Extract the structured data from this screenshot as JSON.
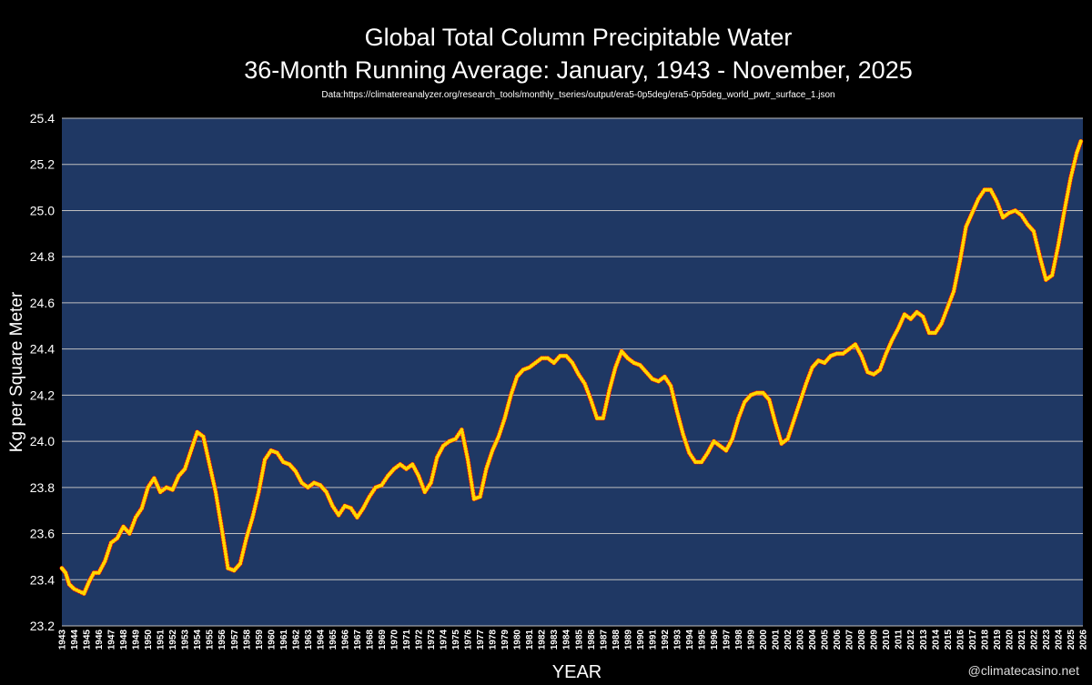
{
  "title": "Global Total Column Precipitable Water",
  "subtitle": "36-Month Running Average: January, 1943 - November, 2025",
  "source": "Data:https://climatereanalyzer.org/research_tools/monthly_tseries/output/era5-0p5deg/era5-0p5deg_world_pwtr_surface_1.json",
  "credit": "@climatecasino.net",
  "colors": {
    "background": "#000000",
    "plot_area": "#1f3864",
    "grid": "#bfbfbf",
    "marker_fill": "#ffd700",
    "marker_edge": "#ff0000"
  },
  "chart_data": {
    "type": "line",
    "xlabel": "YEAR",
    "ylabel": "Kg per Square Meter",
    "ylim": [
      23.2,
      25.4
    ],
    "yticks": [
      "23.2",
      "23.4",
      "23.6",
      "23.8",
      "24.0",
      "24.2",
      "24.4",
      "24.6",
      "24.8",
      "25.0",
      "25.2",
      "25.4"
    ],
    "xlim": [
      1943,
      2026
    ],
    "xticks": [
      "1943",
      "1944",
      "1945",
      "1946",
      "1947",
      "1948",
      "1949",
      "1950",
      "1951",
      "1952",
      "1953",
      "1954",
      "1955",
      "1956",
      "1957",
      "1958",
      "1959",
      "1960",
      "1961",
      "1962",
      "1963",
      "1964",
      "1965",
      "1966",
      "1967",
      "1968",
      "1969",
      "1970",
      "1971",
      "1972",
      "1973",
      "1974",
      "1975",
      "1976",
      "1977",
      "1978",
      "1979",
      "1980",
      "1981",
      "1982",
      "1983",
      "1984",
      "1985",
      "1986",
      "1987",
      "1988",
      "1989",
      "1990",
      "1991",
      "1992",
      "1993",
      "1994",
      "1995",
      "1996",
      "1997",
      "1998",
      "1999",
      "2000",
      "2001",
      "2002",
      "2003",
      "2004",
      "2005",
      "2006",
      "2007",
      "2008",
      "2009",
      "2010",
      "2011",
      "2012",
      "2013",
      "2014",
      "2015",
      "2016",
      "2017",
      "2018",
      "2019",
      "2020",
      "2021",
      "2022",
      "2023",
      "2024",
      "2025",
      "2026"
    ],
    "grid": true,
    "legend": "none",
    "marker": "circle",
    "series": [
      {
        "x": [
          1943.0,
          1943.3,
          1943.6,
          1944.0,
          1944.4,
          1944.8,
          1945.2,
          1945.6,
          1946.0,
          1946.5,
          1947.0,
          1947.5,
          1948.0,
          1948.5,
          1949.0,
          1949.5,
          1950.0,
          1950.5,
          1951.0,
          1951.5,
          1952.0,
          1952.5,
          1953.0,
          1953.5,
          1954.0,
          1954.5,
          1955.0,
          1955.5,
          1956.0,
          1956.5,
          1957.0,
          1957.5,
          1958.0,
          1958.5,
          1959.0,
          1959.5,
          1960.0,
          1960.5,
          1961.0,
          1961.5,
          1962.0,
          1962.5,
          1963.0,
          1963.5,
          1964.0,
          1964.5,
          1965.0,
          1965.5,
          1966.0,
          1966.5,
          1967.0,
          1967.5,
          1968.0,
          1968.5,
          1969.0,
          1969.5,
          1970.0,
          1970.5,
          1971.0,
          1971.5,
          1972.0,
          1972.5,
          1973.0,
          1973.5,
          1974.0,
          1974.5,
          1975.0,
          1975.5,
          1976.0,
          1976.5,
          1977.0,
          1977.5,
          1978.0,
          1978.5,
          1979.0,
          1979.5,
          1980.0,
          1980.5,
          1981.0,
          1981.5,
          1982.0,
          1982.5,
          1983.0,
          1983.5,
          1984.0,
          1984.5,
          1985.0,
          1985.5,
          1986.0,
          1986.5,
          1987.0,
          1987.5,
          1988.0,
          1988.5,
          1989.0,
          1989.5,
          1990.0,
          1990.5,
          1991.0,
          1991.5,
          1992.0,
          1992.5,
          1993.0,
          1993.5,
          1994.0,
          1994.5,
          1995.0,
          1995.5,
          1996.0,
          1996.5,
          1997.0,
          1997.5,
          1998.0,
          1998.5,
          1999.0,
          1999.5,
          2000.0,
          2000.5,
          2001.0,
          2001.5,
          2002.0,
          2002.5,
          2003.0,
          2003.5,
          2004.0,
          2004.5,
          2005.0,
          2005.5,
          2006.0,
          2006.5,
          2007.0,
          2007.5,
          2008.0,
          2008.5,
          2009.0,
          2009.5,
          2010.0,
          2010.5,
          2011.0,
          2011.5,
          2012.0,
          2012.5,
          2013.0,
          2013.5,
          2014.0,
          2014.5,
          2015.0,
          2015.5,
          2016.0,
          2016.5,
          2017.0,
          2017.5,
          2018.0,
          2018.5,
          2019.0,
          2019.5,
          2020.0,
          2020.5,
          2021.0,
          2021.5,
          2022.0,
          2022.5,
          2023.0,
          2023.5,
          2024.0,
          2024.5,
          2025.0,
          2025.5,
          2025.83
        ],
        "y": [
          23.45,
          23.43,
          23.38,
          23.36,
          23.35,
          23.34,
          23.39,
          23.43,
          23.43,
          23.48,
          23.56,
          23.58,
          23.63,
          23.6,
          23.67,
          23.71,
          23.8,
          23.84,
          23.78,
          23.8,
          23.79,
          23.85,
          23.88,
          23.96,
          24.04,
          24.02,
          23.9,
          23.78,
          23.62,
          23.45,
          23.44,
          23.47,
          23.58,
          23.67,
          23.78,
          23.92,
          23.96,
          23.95,
          23.91,
          23.9,
          23.87,
          23.82,
          23.8,
          23.82,
          23.81,
          23.78,
          23.72,
          23.68,
          23.72,
          23.71,
          23.67,
          23.71,
          23.76,
          23.8,
          23.81,
          23.85,
          23.88,
          23.9,
          23.88,
          23.9,
          23.85,
          23.78,
          23.82,
          23.93,
          23.98,
          24.0,
          24.01,
          24.05,
          23.92,
          23.75,
          23.76,
          23.88,
          23.96,
          24.02,
          24.1,
          24.2,
          24.28,
          24.31,
          24.32,
          24.34,
          24.36,
          24.36,
          24.34,
          24.37,
          24.37,
          24.34,
          24.29,
          24.25,
          24.18,
          24.1,
          24.1,
          24.22,
          24.32,
          24.39,
          24.36,
          24.34,
          24.33,
          24.3,
          24.27,
          24.26,
          24.28,
          24.24,
          24.13,
          24.03,
          23.95,
          23.91,
          23.91,
          23.95,
          24.0,
          23.98,
          23.96,
          24.01,
          24.1,
          24.17,
          24.2,
          24.21,
          24.21,
          24.18,
          24.08,
          23.99,
          24.01,
          24.09,
          24.17,
          24.25,
          24.32,
          24.35,
          24.34,
          24.37,
          24.38,
          24.38,
          24.4,
          24.42,
          24.37,
          24.3,
          24.29,
          24.31,
          24.38,
          24.44,
          24.49,
          24.55,
          24.53,
          24.56,
          24.54,
          24.47,
          24.47,
          24.51,
          24.58,
          24.65,
          24.78,
          24.93,
          24.99,
          25.05,
          25.09,
          25.09,
          25.04,
          24.97,
          24.99,
          25.0,
          24.98,
          24.94,
          24.91,
          24.8,
          24.7,
          24.72,
          24.85,
          25.0,
          25.14,
          25.25,
          25.3
        ]
      }
    ]
  }
}
